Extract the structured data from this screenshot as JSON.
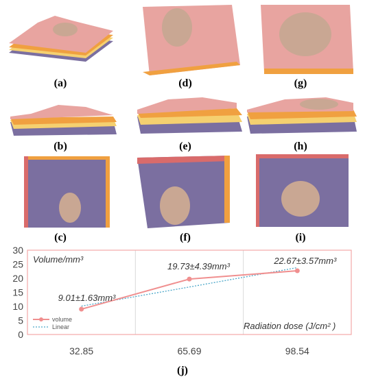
{
  "panels": [
    {
      "id": "a",
      "label": "(a)"
    },
    {
      "id": "b",
      "label": "(b)"
    },
    {
      "id": "c",
      "label": "(c)"
    },
    {
      "id": "d",
      "label": "(d)"
    },
    {
      "id": "e",
      "label": "(e)"
    },
    {
      "id": "f",
      "label": "(f)"
    },
    {
      "id": "g",
      "label": "(g)"
    },
    {
      "id": "h",
      "label": "(h)"
    },
    {
      "id": "i",
      "label": "(i)"
    }
  ],
  "chart_label": "(j)",
  "colors": {
    "skin_red": "#d96b6b",
    "skin_pink": "#e8a4a0",
    "layer_orange": "#f0a040",
    "layer_yellow": "#f5d070",
    "layer_purple": "#7b6fa0",
    "lesion": "#c9a793",
    "volume_line": "#f08f8f",
    "linear_line": "#4aa6c8",
    "plot_border": "#f2a8a8",
    "grid": "#d9d9d9"
  },
  "chart_data": {
    "type": "line",
    "categories": [
      "32.85",
      "65.69",
      "98.54"
    ],
    "series": [
      {
        "name": "volume",
        "values": [
          9.01,
          19.73,
          22.67
        ],
        "style": "solid-with-markers"
      },
      {
        "name": "Linear",
        "style": "dotted",
        "values": [
          10.1,
          16.9,
          23.8
        ]
      }
    ],
    "data_labels": [
      "9.01±1.63mm³",
      "19.73±4.39mm³",
      "22.67±3.57mm³"
    ],
    "yticks": [
      "0",
      "5",
      "10",
      "15",
      "20",
      "25",
      "30"
    ],
    "ylim": [
      0,
      30
    ],
    "ylabel": "Volume/mm³",
    "xlabel": "Radiation dose (J/cm² )",
    "legend": [
      "volume",
      "Linear"
    ],
    "legend_position": "bottom-left",
    "grid": true
  }
}
